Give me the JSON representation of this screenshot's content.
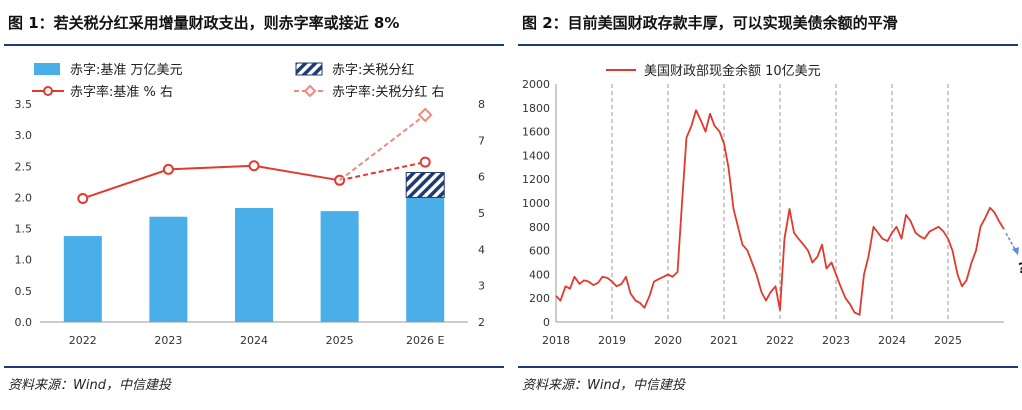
{
  "source_label": "资料来源：Wind，中信建投",
  "chart_data": [
    {
      "type": "bar+line",
      "title": "图 1：若关税分红采用增量财政支出，则赤字率或接近 8%",
      "categories": [
        "2022",
        "2023",
        "2024",
        "2025",
        "2026 E"
      ],
      "bars": {
        "name": "赤字:基准 万亿美元",
        "color": "#4aaee8",
        "values": [
          1.38,
          1.69,
          1.83,
          1.78,
          2.0
        ]
      },
      "stacked": {
        "name": "赤字:关税分红",
        "color": "#1f3b73",
        "category": "2026 E",
        "base": 2.0,
        "value": 0.4
      },
      "line_base": {
        "name": "赤字率:基准 % 右",
        "color": "#e03a2f",
        "values": [
          5.4,
          6.2,
          6.3,
          5.9,
          6.4
        ]
      },
      "line_tariff": {
        "name": "赤字率:关税分红 右",
        "color": "#f08a80",
        "from_category": "2025",
        "to_category": "2026 E",
        "values": [
          5.9,
          7.7
        ]
      },
      "y_left": {
        "min": 0,
        "max": 3.5,
        "ticks": [
          "0.0",
          "0.5",
          "1.0",
          "1.5",
          "2.0",
          "2.5",
          "3.0",
          "3.5"
        ]
      },
      "y_right": {
        "min": 2,
        "max": 8,
        "ticks": [
          "2",
          "3",
          "4",
          "5",
          "6",
          "7",
          "8"
        ]
      }
    },
    {
      "type": "line",
      "title": "图 2：目前美国财政存款丰厚，可以实现美债余额的平滑",
      "series_name": "美国财政部现金余额 10亿美元",
      "color": "#e03a2f",
      "x_range": [
        2018,
        2026
      ],
      "x_ticks": [
        "2018",
        "2019",
        "2020",
        "2021",
        "2022",
        "2023",
        "2024",
        "2025"
      ],
      "y_range": [
        0,
        2000
      ],
      "y_ticks": [
        "0",
        "200",
        "400",
        "600",
        "800",
        "1000",
        "1200",
        "1400",
        "1600",
        "1800",
        "2000"
      ],
      "x": [
        2018.0,
        2018.08,
        2018.17,
        2018.25,
        2018.33,
        2018.42,
        2018.5,
        2018.58,
        2018.67,
        2018.75,
        2018.83,
        2018.92,
        2019.0,
        2019.08,
        2019.17,
        2019.25,
        2019.33,
        2019.42,
        2019.5,
        2019.58,
        2019.67,
        2019.75,
        2019.83,
        2019.92,
        2020.0,
        2020.08,
        2020.17,
        2020.25,
        2020.33,
        2020.42,
        2020.5,
        2020.58,
        2020.67,
        2020.75,
        2020.83,
        2020.92,
        2021.0,
        2021.08,
        2021.17,
        2021.25,
        2021.33,
        2021.42,
        2021.5,
        2021.58,
        2021.67,
        2021.75,
        2021.83,
        2021.92,
        2022.0,
        2022.08,
        2022.17,
        2022.25,
        2022.33,
        2022.42,
        2022.5,
        2022.58,
        2022.67,
        2022.75,
        2022.83,
        2022.92,
        2023.0,
        2023.08,
        2023.17,
        2023.25,
        2023.33,
        2023.42,
        2023.5,
        2023.58,
        2023.67,
        2023.75,
        2023.83,
        2023.92,
        2024.0,
        2024.08,
        2024.17,
        2024.25,
        2024.33,
        2024.42,
        2024.5,
        2024.58,
        2024.67,
        2024.75,
        2024.83,
        2024.92,
        2025.0,
        2025.08,
        2025.17,
        2025.25,
        2025.33,
        2025.42,
        2025.5,
        2025.58,
        2025.67,
        2025.75,
        2025.83,
        2025.92,
        2026.0
      ],
      "y": [
        220,
        180,
        300,
        280,
        380,
        320,
        350,
        340,
        310,
        330,
        380,
        370,
        340,
        300,
        320,
        380,
        240,
        180,
        160,
        120,
        220,
        340,
        360,
        380,
        400,
        380,
        420,
        1000,
        1550,
        1650,
        1780,
        1700,
        1600,
        1750,
        1650,
        1600,
        1500,
        1300,
        950,
        800,
        650,
        600,
        500,
        400,
        250,
        180,
        250,
        300,
        100,
        700,
        950,
        750,
        700,
        650,
        600,
        500,
        550,
        650,
        450,
        500,
        400,
        300,
        200,
        150,
        80,
        60,
        400,
        550,
        800,
        750,
        700,
        680,
        750,
        800,
        700,
        900,
        850,
        750,
        720,
        700,
        760,
        780,
        800,
        760,
        700,
        600,
        400,
        300,
        350,
        500,
        600,
        800,
        880,
        960,
        920,
        840,
        780
      ],
      "annotation": "?"
    }
  ]
}
